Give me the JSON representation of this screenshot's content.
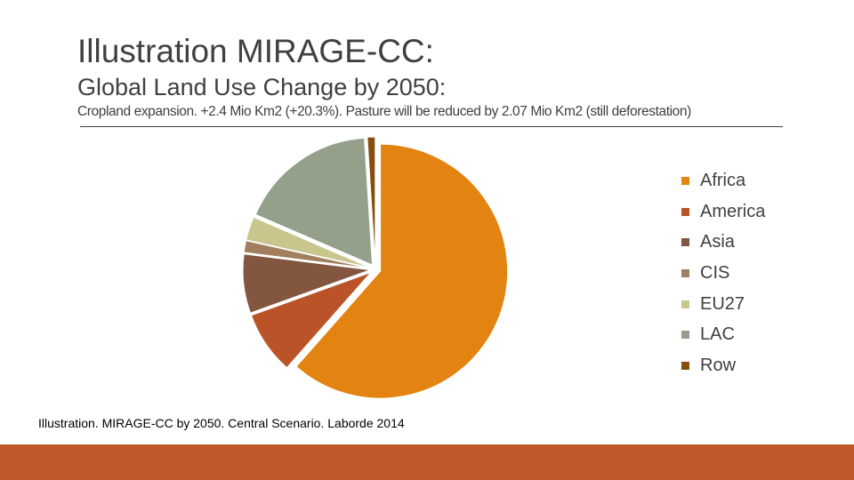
{
  "slide": {
    "title": "Illustration MIRAGE-CC:",
    "subtitle": "Global Land Use Change by 2050:",
    "subsubtitle": "Cropland expansion. +2.4 Mio Km2 (+20.3%). Pasture will be reduced by 2.07 Mio Km2 (still deforestation)",
    "source": "Illustration. MIRAGE-CC by 2050. Central Scenario. Laborde 2014"
  },
  "chart_data": {
    "type": "pie",
    "title": "",
    "start_angle_deg": 0,
    "exploded": true,
    "categories": [
      "Africa",
      "America",
      "Asia",
      "CIS",
      "EU27",
      "LAC",
      "Row"
    ],
    "values": [
      61.5,
      8.0,
      7.5,
      1.5,
      3.0,
      17.5,
      1.0
    ],
    "units": "percent of total",
    "colors": [
      "#E38312",
      "#BA5428",
      "#83563F",
      "#A17F5E",
      "#C9C68D",
      "#94A089",
      "#874E0E"
    ],
    "legend_position": "right"
  },
  "colors": {
    "footer_bar": "#C0582A",
    "slide_text": "#404040"
  }
}
